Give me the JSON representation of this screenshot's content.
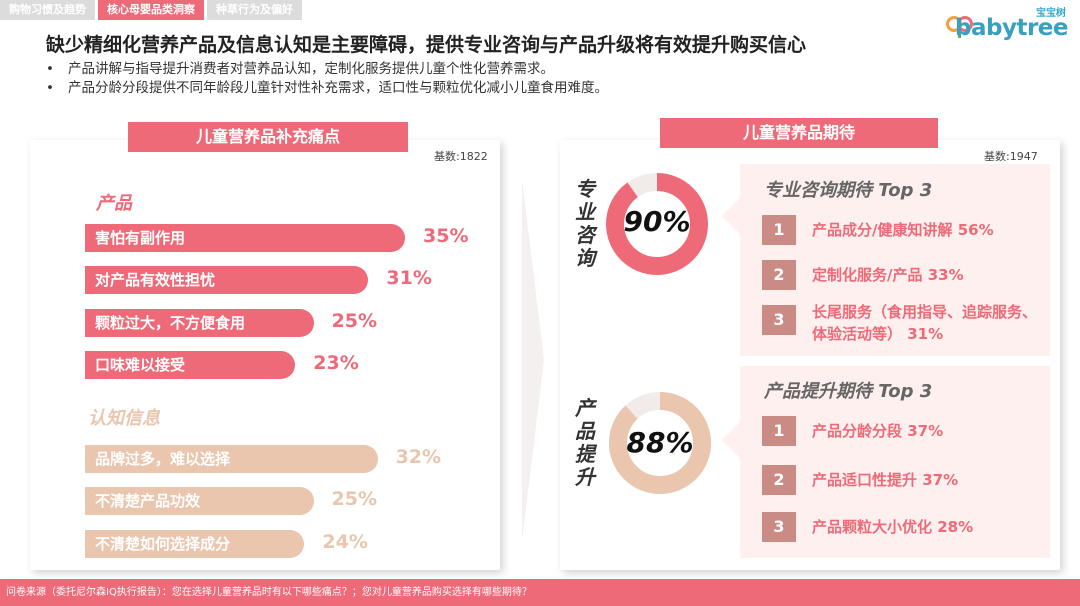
{
  "tabs": [
    {
      "label": "购物习惯及趋势",
      "active": false
    },
    {
      "label": "核心母婴品类洞察",
      "active": true
    },
    {
      "label": "种草行为及偏好",
      "active": false
    }
  ],
  "logo": {
    "cn": "宝宝树",
    "en": "babytree"
  },
  "title": "缺少精细化营养产品及信息认知是主要障碍，提供专业咨询与产品升级将有效提升购买信心",
  "bullets": [
    "产品讲解与指导提升消费者对营养品认知，定制化服务提供儿童个性化营养需求。",
    "产品分龄分段提供不同年龄段儿童针对性补充需求，适口性与颗粒优化减小儿童食用难度。"
  ],
  "left_panel": {
    "header": "儿童营养品补充痛点",
    "base": "基数:1822"
  },
  "right_panel": {
    "header": "儿童营养品期待",
    "base": "基数:1947",
    "consult": {
      "vertical_label": [
        "专",
        "业",
        "咨",
        "询"
      ],
      "value_label": "90%",
      "box_title": "专业咨询期待 Top 3",
      "items": [
        {
          "rank": "1",
          "text": "产品成分/健康知讲解 56%"
        },
        {
          "rank": "2",
          "text": "定制化服务/产品 33%"
        },
        {
          "rank": "3",
          "text": "长尾服务（食用指导、追踪服务、体验活动等） 31%"
        }
      ]
    },
    "upgrade": {
      "vertical_label": [
        "产",
        "品",
        "提",
        "升"
      ],
      "value_label": "88%",
      "box_title": "产品提升期待 Top 3",
      "items": [
        {
          "rank": "1",
          "text": "产品分龄分段 37%"
        },
        {
          "rank": "2",
          "text": "产品适口性提升 37%"
        },
        {
          "rank": "3",
          "text": "产品颗粒大小优化 28%"
        }
      ]
    }
  },
  "footer": "问卷来源（委托尼尔森IQ执行报告）：您在选择儿童营养品时有以下哪些痛点？；您对儿童营养品购买选择有哪些期待？",
  "colors": {
    "pink": "#ef6a78",
    "beige": "#e9c6ad",
    "track": "#f1ece9",
    "box_bg": "#fdf0ee"
  },
  "chart_data": [
    {
      "type": "bar",
      "title": "儿童营养品补充痛点",
      "series": [
        {
          "name": "产品",
          "color": "#ef6a78",
          "categories": [
            "害怕有副作用",
            "对产品有效性担忧",
            "颗粒过大，不方便食用",
            "口味难以接受"
          ],
          "values": [
            35,
            31,
            25,
            23
          ],
          "labels": [
            "35%",
            "31%",
            "25%",
            "23%"
          ]
        },
        {
          "name": "认知信息",
          "color": "#e9c6ad",
          "categories": [
            "品牌过多，难以选择",
            "不清楚产品功效",
            "不清楚如何选择成分"
          ],
          "values": [
            32,
            25,
            24
          ],
          "labels": [
            "32%",
            "25%",
            "24%"
          ]
        }
      ],
      "xlim": [
        0,
        35
      ]
    },
    {
      "type": "pie",
      "title": "专业咨询",
      "values": [
        90,
        10
      ],
      "color": "#ef6a78"
    },
    {
      "type": "pie",
      "title": "产品提升",
      "values": [
        88,
        12
      ],
      "color": "#e9c6ad"
    }
  ]
}
